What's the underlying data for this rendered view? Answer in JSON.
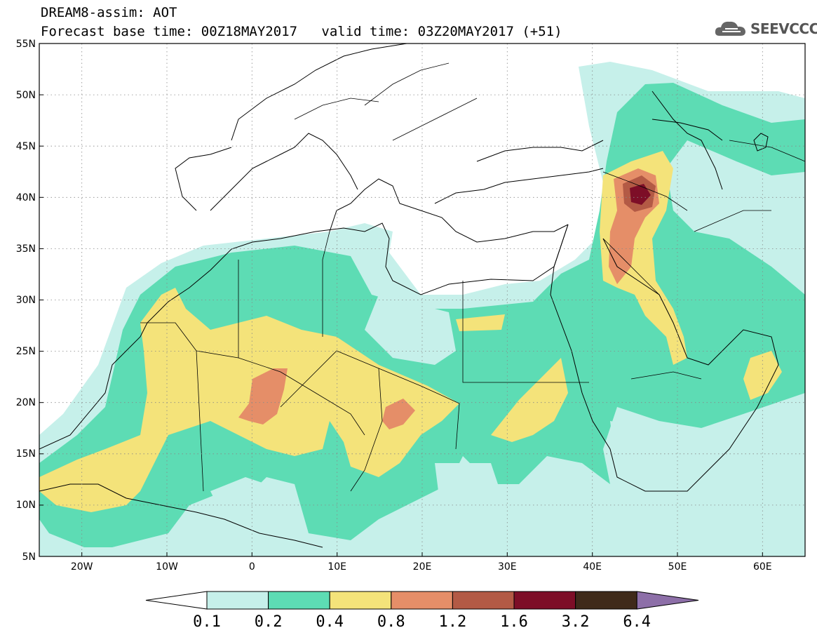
{
  "title": {
    "line1": "DREAM8-assim: AOT",
    "line2_base": "Forecast base time: 00Z18MAY2017",
    "line2_valid": "valid time: 03Z20MAY2017 (+51)"
  },
  "logo": {
    "text": "SEEVCCC",
    "icon": "cloud-icon"
  },
  "map": {
    "projection": "lat-lon",
    "lon_range": [
      -25,
      65
    ],
    "lat_range": [
      5,
      55
    ],
    "lat_ticks": [
      "55N",
      "50N",
      "45N",
      "40N",
      "35N",
      "30N",
      "25N",
      "20N",
      "15N",
      "10N",
      "5N"
    ],
    "lon_ticks": [
      "20W",
      "10W",
      "0",
      "10E",
      "20E",
      "30E",
      "40E",
      "50E",
      "60E"
    ],
    "grid": "dotted",
    "field": "Aerosol Optical Thickness (dust)"
  },
  "colorbar": {
    "levels": [
      "0.1",
      "0.2",
      "0.4",
      "0.8",
      "1.2",
      "1.6",
      "3.2",
      "6.4"
    ],
    "colors": [
      "#ffffff",
      "#c6f0ea",
      "#5ddcb4",
      "#f4e37a",
      "#e58e68",
      "#b35a45",
      "#7d0e27",
      "#3f2a1a",
      "#8d6fa8"
    ]
  }
}
